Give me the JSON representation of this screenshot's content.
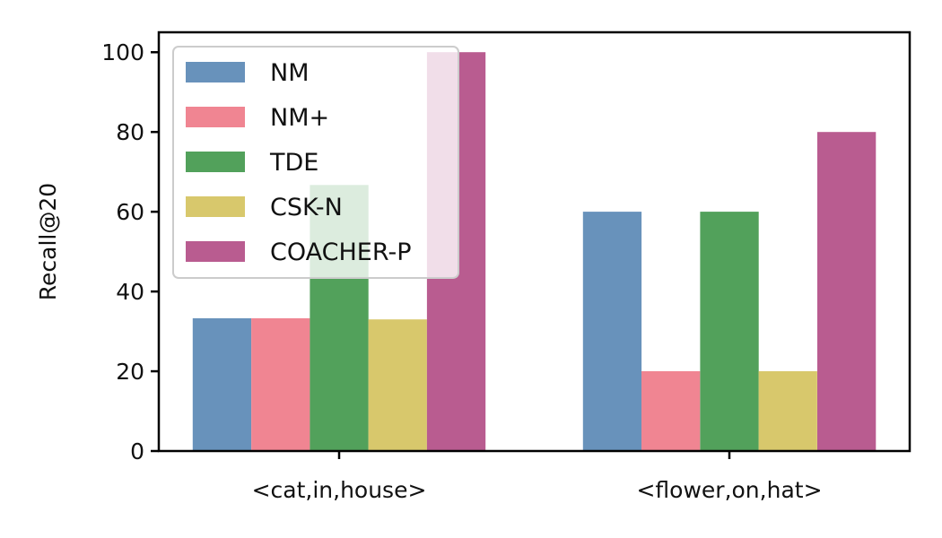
{
  "chart_data": {
    "type": "bar",
    "categories": [
      "<cat,in,house>",
      "<flower,on,hat>"
    ],
    "series": [
      {
        "name": "NM",
        "color": "#6892bb",
        "values": [
          33.3,
          60
        ]
      },
      {
        "name": "NM+",
        "color": "#f08592",
        "values": [
          33.3,
          20
        ]
      },
      {
        "name": "TDE",
        "color": "#52a15b",
        "values": [
          66.7,
          60
        ]
      },
      {
        "name": "CSK-N",
        "color": "#d8c86c",
        "values": [
          33.0,
          20
        ]
      },
      {
        "name": "COACHER-P",
        "color": "#b95c90",
        "values": [
          100,
          80
        ]
      }
    ],
    "ylabel": "Recall@20",
    "xlabel": "",
    "ylim": [
      0,
      105
    ],
    "yticks": [
      0,
      20,
      40,
      60,
      80,
      100
    ],
    "grid": false,
    "legend_position": "top-left"
  }
}
